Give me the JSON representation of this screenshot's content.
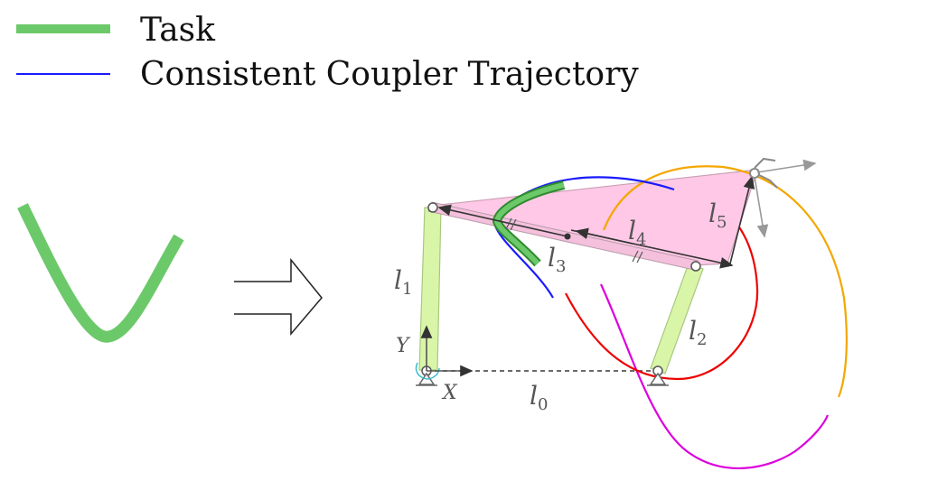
{
  "legend": {
    "task_label": "Task",
    "trajectory_label": "Consistent Coupler Trajectory"
  },
  "colors": {
    "task": "#6cc96a",
    "trajectory": "#1a1aff",
    "coupler_fill": "#ffc8e6",
    "link_fill": "#d9f5a8",
    "curve_red": "#ee0000",
    "curve_orange": "#f4a700",
    "curve_magenta": "#dd00dd"
  },
  "labels": {
    "l1": {
      "base": "l",
      "sub": "1"
    },
    "l2": {
      "base": "l",
      "sub": "2"
    },
    "l3": {
      "base": "l",
      "sub": "3"
    },
    "l4": {
      "base": "l",
      "sub": "4"
    },
    "l5": {
      "base": "l",
      "sub": "5"
    },
    "l0": {
      "base": "l",
      "sub": "0"
    },
    "axis_x": "X",
    "axis_y": "Y"
  }
}
